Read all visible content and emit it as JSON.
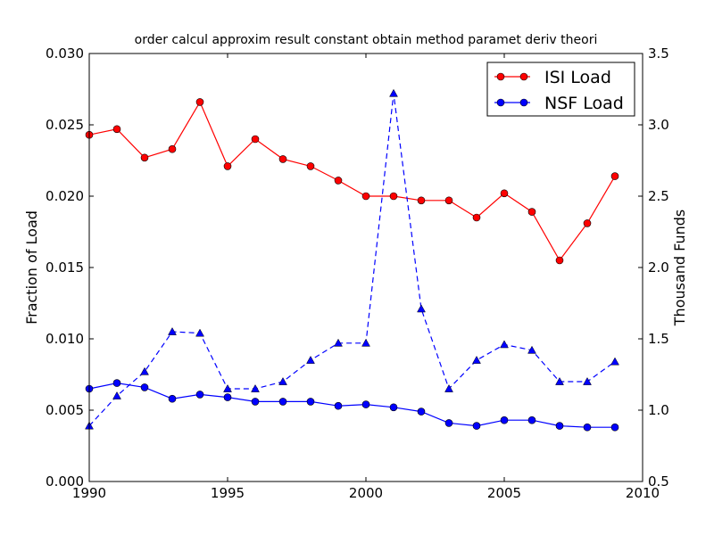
{
  "chart_data": {
    "type": "line",
    "title": "order calcul approxim result constant obtain method paramet deriv theori",
    "xlim": [
      1990,
      2010
    ],
    "x_ticks": [
      1990,
      1995,
      2000,
      2005,
      2010
    ],
    "x_tick_labels": [
      "1990",
      "1995",
      "2000",
      "2005",
      "2010"
    ],
    "left_axis": {
      "label": "Fraction of Load",
      "ylim": [
        0,
        0.03
      ],
      "ticks": [
        0,
        0.005,
        0.01,
        0.015,
        0.02,
        0.025,
        0.03
      ],
      "tick_labels": [
        "0.000",
        "0.005",
        "0.010",
        "0.015",
        "0.020",
        "0.025",
        "0.030"
      ]
    },
    "right_axis": {
      "label": "Thousand Funds",
      "ylim": [
        0.5,
        3.5
      ],
      "ticks": [
        0.5,
        1.0,
        1.5,
        2.0,
        2.5,
        3.0,
        3.5
      ],
      "tick_labels": [
        "0.5",
        "1.0",
        "1.5",
        "2.0",
        "2.5",
        "3.0",
        "3.5"
      ]
    },
    "legend_position": "top-right",
    "grid": false,
    "series": [
      {
        "name": "ISI Load",
        "axis": "left",
        "style": "solid",
        "marker": "circle",
        "color": "#ff0000",
        "x": [
          1990,
          1991,
          1992,
          1993,
          1994,
          1995,
          1996,
          1997,
          1998,
          1999,
          2000,
          2001,
          2002,
          2003,
          2004,
          2005,
          2006,
          2007,
          2008,
          2009
        ],
        "values": [
          0.0243,
          0.0247,
          0.0227,
          0.0233,
          0.0266,
          0.0221,
          0.024,
          0.0226,
          0.0221,
          0.0211,
          0.02,
          0.02,
          0.0197,
          0.0197,
          0.0185,
          0.0202,
          0.0189,
          0.0155,
          0.0181,
          0.0214
        ]
      },
      {
        "name": "NSF Load",
        "axis": "left",
        "style": "solid",
        "marker": "circle",
        "color": "#0000ff",
        "x": [
          1990,
          1991,
          1992,
          1993,
          1994,
          1995,
          1996,
          1997,
          1998,
          1999,
          2000,
          2001,
          2002,
          2003,
          2004,
          2005,
          2006,
          2007,
          2008,
          2009
        ],
        "values": [
          0.0065,
          0.0069,
          0.0066,
          0.0058,
          0.0061,
          0.0059,
          0.0056,
          0.0056,
          0.0056,
          0.0053,
          0.0054,
          0.0052,
          0.0049,
          0.0041,
          0.0039,
          0.0043,
          0.0043,
          0.0039,
          0.0038,
          0.0038
        ]
      },
      {
        "axis": "right",
        "style": "dashed",
        "marker": "triangle",
        "color": "#0000ff",
        "x": [
          1990,
          1991,
          1992,
          1993,
          1994,
          1995,
          1996,
          1997,
          1998,
          1999,
          2000,
          2001,
          2002,
          2003,
          2004,
          2005,
          2006,
          2007,
          2008,
          2009
        ],
        "values": [
          0.89,
          1.1,
          1.27,
          1.55,
          1.54,
          1.15,
          1.15,
          1.2,
          1.35,
          1.47,
          1.47,
          3.22,
          1.71,
          1.15,
          1.35,
          1.46,
          1.42,
          1.2,
          1.2,
          1.34
        ]
      }
    ]
  }
}
